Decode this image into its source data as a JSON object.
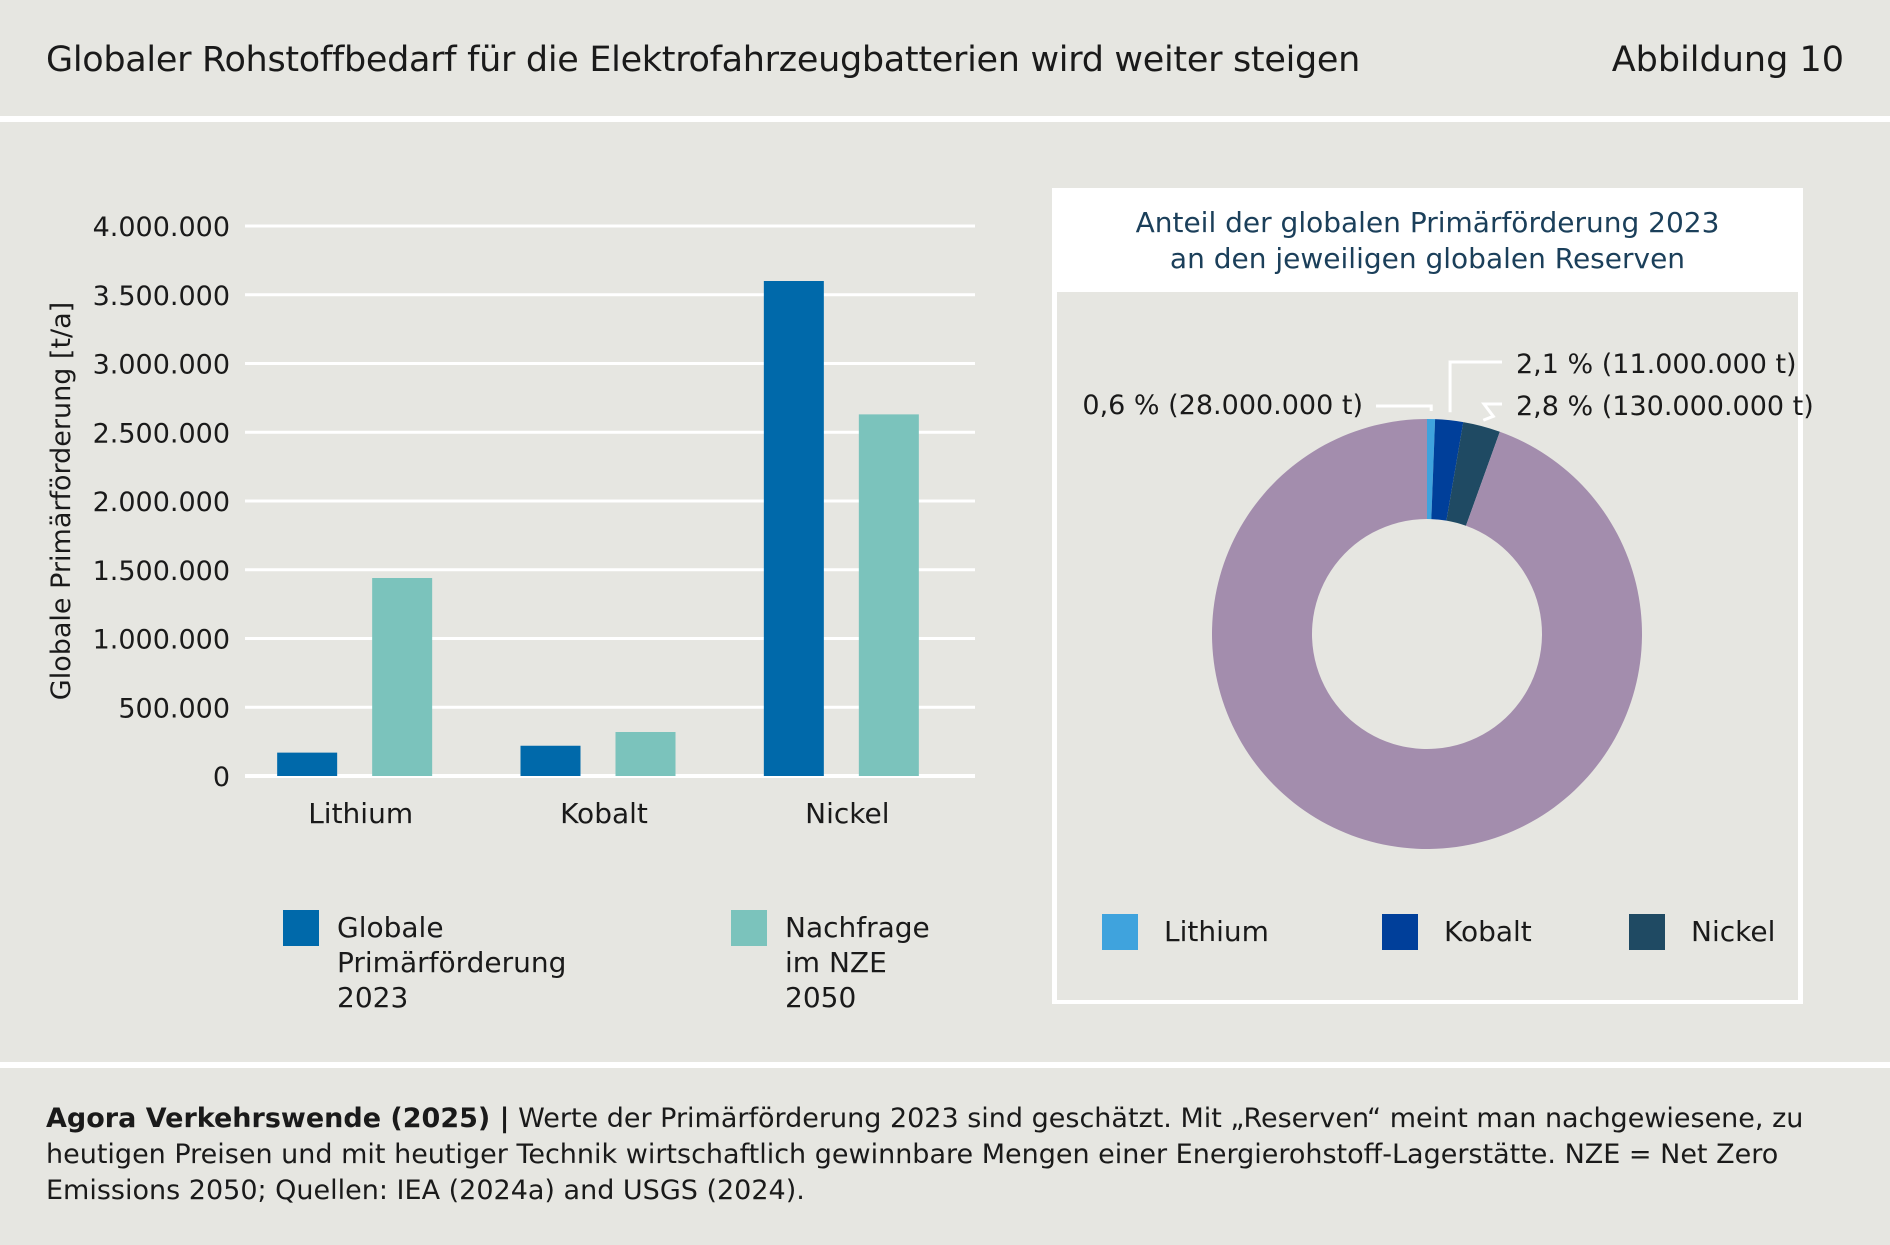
{
  "header": {
    "title": "Globaler Rohstoffbedarf für die Elektrofahrzeugbatterien wird weiter steigen",
    "figure_label": "Abbildung 10"
  },
  "colors": {
    "background": "#e6e6e1",
    "production": "#0069aa",
    "demand": "#7bc3bc",
    "lithium": "#3fa3dd",
    "kobalt": "#003f9a",
    "nickel": "#1f4a63",
    "rest": "#a38dad"
  },
  "chart_data": [
    {
      "type": "bar",
      "categories": [
        "Lithium",
        "Kobalt",
        "Nickel"
      ],
      "series": [
        {
          "name": "Globale Primärförderung 2023",
          "values": [
            170000,
            220000,
            3600000
          ],
          "color": "#0069aa"
        },
        {
          "name": "Nachfrage im NZE 2050",
          "values": [
            1440000,
            320000,
            2630000
          ],
          "color": "#7bc3bc"
        }
      ],
      "ylabel": "Globale Primärförderung [t/a]",
      "ylim": [
        0,
        4000000
      ],
      "yticks": [
        0,
        500000,
        1000000,
        1500000,
        2000000,
        2500000,
        3000000,
        3500000,
        4000000
      ],
      "ytick_labels": [
        "0",
        "500.000",
        "1.000.000",
        "1.500.000",
        "2.000.000",
        "2.500.000",
        "3.000.000",
        "3.500.000",
        "4.000.000"
      ],
      "grid": true,
      "legend_labels": [
        "Globale\nPrimärförderung\n2023",
        "Nachfrage\nim NZE\n2050"
      ],
      "legend_position": "bottom"
    },
    {
      "type": "pie",
      "title": "Anteil der globalen Primärförderung 2023\nan den jeweiligen globalen Reserven",
      "slices": [
        {
          "name": "Lithium",
          "value": 0.6,
          "label": "0,6 % (28.000.000 t)",
          "color": "#3fa3dd"
        },
        {
          "name": "Kobalt",
          "value": 2.1,
          "label": "2,1 % (11.000.000 t)",
          "color": "#003f9a"
        },
        {
          "name": "Nickel",
          "value": 2.8,
          "label": "2,8 % (130.000.000 t)",
          "color": "#1f4a63"
        }
      ],
      "rest_color": "#a38dad",
      "donut": true,
      "legend": [
        "Lithium",
        "Kobalt",
        "Nickel"
      ],
      "legend_position": "bottom"
    }
  ],
  "footer": {
    "source": "Agora Verkehrswende (2025) |",
    "note": " Werte der Primärförderung 2023 sind geschätzt. Mit „Reserven“ meint man nachgewiesene, zu heutigen Preisen und mit heutiger Technik wirtschaftlich gewinnbare Mengen einer Energierohstoff-Lagerstätte. NZE = Net Zero Emissions 2050; Quellen: IEA (2024a) and USGS (2024)."
  }
}
